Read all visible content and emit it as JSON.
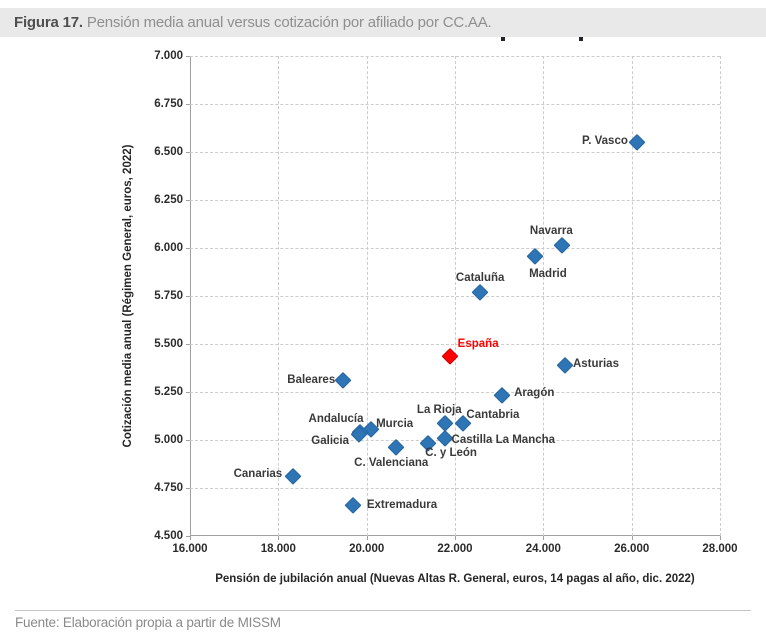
{
  "figure": {
    "caption_prefix": "Figura 17.",
    "caption_rest": " Pensión media anual versus cotización por afiliado por CC.AA."
  },
  "footer": {
    "source": "Fuente: Elaboración propia a partir de MISSM"
  },
  "chart_data": {
    "type": "scatter",
    "title": "",
    "xlabel": "Pensión de jubilación anual (Nuevas Altas R. General, euros, 14 pagas al año, dic. 2022)",
    "ylabel": "Cotización media anual (Régimen General, euros, 2022)",
    "xlim": [
      16000,
      28000
    ],
    "ylim": [
      4500,
      7000
    ],
    "grid": "dashed, horizontal and vertical",
    "legend_position": "none",
    "marker": "diamond",
    "colors": {
      "point": "#2e75b6",
      "highlight": "#fe0000"
    },
    "x_ticks": [
      {
        "label": "16.000",
        "value": 16000
      },
      {
        "label": "18.000",
        "value": 18000
      },
      {
        "label": "20.000",
        "value": 20000
      },
      {
        "label": "22.000",
        "value": 22000
      },
      {
        "label": "24.000",
        "value": 24000
      },
      {
        "label": "26.000",
        "value": 26000
      },
      {
        "label": "28.000",
        "value": 28000
      }
    ],
    "y_ticks": [
      {
        "label": "7.000",
        "value": 7000
      },
      {
        "label": "6.750",
        "value": 6750
      },
      {
        "label": "6.500",
        "value": 6500
      },
      {
        "label": "6.250",
        "value": 6250
      },
      {
        "label": "6.000",
        "value": 6000
      },
      {
        "label": "5.750",
        "value": 5750
      },
      {
        "label": "5.500",
        "value": 5500
      },
      {
        "label": "5.250",
        "value": 5250
      },
      {
        "label": "5.000",
        "value": 5000
      },
      {
        "label": "4.750",
        "value": 4750
      },
      {
        "label": "4.500",
        "value": 4500
      }
    ],
    "points": [
      {
        "label": "P. Vasco",
        "x": 26120,
        "y": 6550,
        "highlight": false,
        "label_offset": [
          -32,
          -1
        ]
      },
      {
        "label": "Navarra",
        "x": 24430,
        "y": 6015,
        "highlight": false,
        "label_offset": [
          -11,
          -14
        ]
      },
      {
        "label": "Madrid",
        "x": 23810,
        "y": 5960,
        "highlight": false,
        "label_offset": [
          13,
          18
        ]
      },
      {
        "label": "Cataluña",
        "x": 22570,
        "y": 5770,
        "highlight": false,
        "label_offset": [
          0,
          -14
        ]
      },
      {
        "label": "España",
        "x": 21890,
        "y": 5435,
        "highlight": true,
        "label_offset": [
          28,
          -12
        ]
      },
      {
        "label": "Asturias",
        "x": 24490,
        "y": 5390,
        "highlight": false,
        "label_offset": [
          31,
          -1
        ]
      },
      {
        "label": "Baleares",
        "x": 19470,
        "y": 5310,
        "highlight": false,
        "label_offset": [
          -32,
          0
        ]
      },
      {
        "label": "Aragón",
        "x": 23070,
        "y": 5235,
        "highlight": false,
        "label_offset": [
          32,
          -2
        ]
      },
      {
        "label": "Cantabria",
        "x": 22180,
        "y": 5090,
        "highlight": false,
        "label_offset": [
          30,
          -8
        ]
      },
      {
        "label": "La Rioja",
        "x": 21780,
        "y": 5090,
        "highlight": false,
        "label_offset": [
          -6,
          -13
        ]
      },
      {
        "label": "Castilla La Mancha",
        "x": 21780,
        "y": 5010,
        "highlight": false,
        "label_offset": [
          58,
          2
        ]
      },
      {
        "label": "C. y León",
        "x": 21390,
        "y": 4985,
        "highlight": false,
        "label_offset": [
          23,
          10
        ]
      },
      {
        "label": "Murcia",
        "x": 20090,
        "y": 5055,
        "highlight": false,
        "label_offset": [
          24,
          -5
        ]
      },
      {
        "label": "Andalucía",
        "x": 19850,
        "y": 5040,
        "highlight": false,
        "label_offset": [
          -24,
          -13
        ]
      },
      {
        "label": "Galicia",
        "x": 19830,
        "y": 5030,
        "highlight": false,
        "label_offset": [
          -29,
          7
        ]
      },
      {
        "label": "C. Valenciana",
        "x": 20670,
        "y": 4965,
        "highlight": false,
        "label_offset": [
          -5,
          16
        ]
      },
      {
        "label": "Canarias",
        "x": 18330,
        "y": 4810,
        "highlight": false,
        "label_offset": [
          -35,
          -2
        ]
      },
      {
        "label": "Extremadura",
        "x": 19690,
        "y": 4660,
        "highlight": false,
        "label_offset": [
          49,
          0
        ]
      }
    ]
  }
}
